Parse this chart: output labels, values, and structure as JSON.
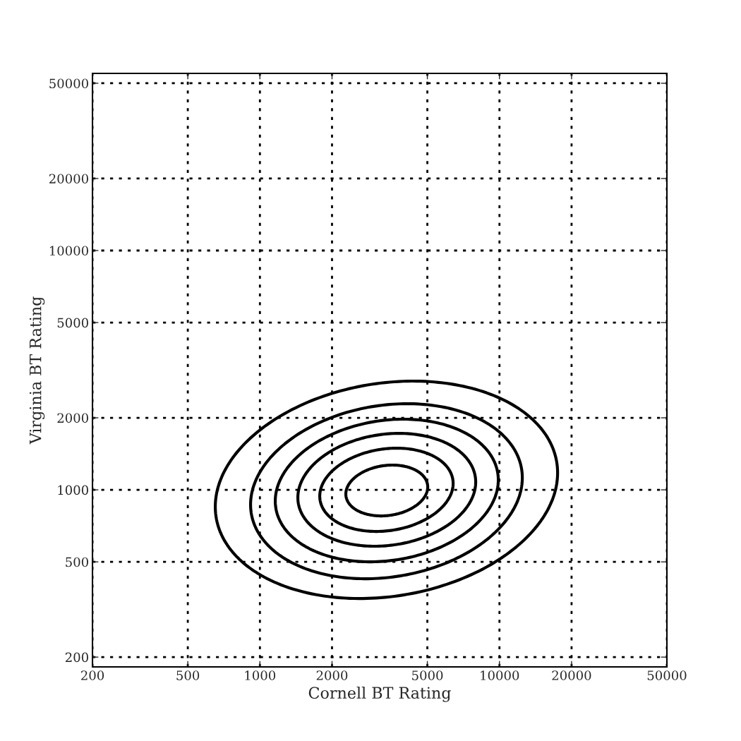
{
  "chart_data": {
    "type": "line",
    "xlabel": "Cornell BT Rating",
    "ylabel": "Virginia BT Rating",
    "log": "xy",
    "grid": true,
    "xlim": [
      200,
      50000
    ],
    "ylim": [
      182,
      55000
    ],
    "xticks": [
      200,
      500,
      1000,
      2000,
      5000,
      10000,
      20000,
      50000
    ],
    "yticks": [
      200,
      500,
      1000,
      2000,
      5000,
      10000,
      20000,
      50000
    ]
  }
}
